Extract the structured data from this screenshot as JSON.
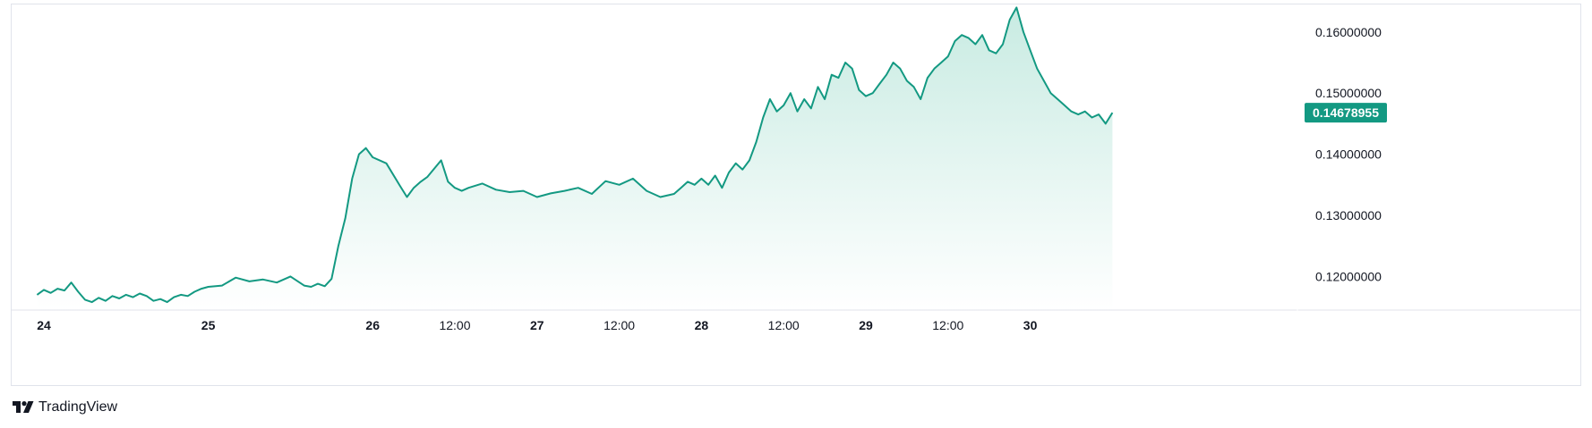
{
  "brand": {
    "name": "TradingView",
    "icon": "tradingview-logo-icon"
  },
  "colors": {
    "line": "#139982",
    "fill_top": "#c8ebe2",
    "fill_bottom": "#ffffff",
    "badge": "#139982"
  },
  "last_price": "0.14678955",
  "chart_data": {
    "type": "area",
    "title": "",
    "xlabel": "",
    "ylabel": "",
    "y_tick_labels": [
      "0.12000000",
      "0.13000000",
      "0.14000000",
      "0.15000000",
      "0.16000000"
    ],
    "x_tick_labels": [
      {
        "label": "24",
        "day": true
      },
      {
        "label": "25",
        "day": true
      },
      {
        "label": "26",
        "day": true
      },
      {
        "label": "12:00",
        "day": false
      },
      {
        "label": "27",
        "day": true
      },
      {
        "label": "12:00",
        "day": false
      },
      {
        "label": "28",
        "day": true
      },
      {
        "label": "12:00",
        "day": false
      },
      {
        "label": "29",
        "day": true
      },
      {
        "label": "12:00",
        "day": false
      },
      {
        "label": "30",
        "day": true
      }
    ],
    "ylim": [
      0.1145,
      0.1645
    ],
    "grid": false,
    "series": [
      {
        "x": [
          "23 Jun 23:00",
          "24 Jun 00:00",
          "24 Jun 01:00",
          "24 Jun 02:00",
          "24 Jun 03:00",
          "24 Jun 04:00",
          "24 Jun 05:00",
          "24 Jun 06:00",
          "24 Jun 07:00",
          "24 Jun 08:00",
          "24 Jun 09:00",
          "24 Jun 10:00",
          "24 Jun 11:00",
          "24 Jun 12:00",
          "24 Jun 13:00",
          "24 Jun 14:00",
          "24 Jun 15:00",
          "24 Jun 16:00",
          "24 Jun 17:00",
          "24 Jun 18:00",
          "24 Jun 19:00",
          "24 Jun 20:00",
          "24 Jun 21:00",
          "24 Jun 22:00",
          "24 Jun 23:00",
          "25 Jun 00:00",
          "25 Jun 02:00",
          "25 Jun 04:00",
          "25 Jun 06:00",
          "25 Jun 08:00",
          "25 Jun 10:00",
          "25 Jun 12:00",
          "25 Jun 14:00",
          "25 Jun 15:00",
          "25 Jun 16:00",
          "25 Jun 17:00",
          "25 Jun 18:00",
          "25 Jun 19:00",
          "25 Jun 20:00",
          "25 Jun 21:00",
          "25 Jun 22:00",
          "25 Jun 23:00",
          "26 Jun 00:00",
          "26 Jun 02:00",
          "26 Jun 04:00",
          "26 Jun 05:00",
          "26 Jun 06:00",
          "26 Jun 07:00",
          "26 Jun 08:00",
          "26 Jun 10:00",
          "26 Jun 11:00",
          "26 Jun 12:00",
          "26 Jun 13:00",
          "26 Jun 14:00",
          "26 Jun 16:00",
          "26 Jun 18:00",
          "26 Jun 20:00",
          "26 Jun 22:00",
          "27 Jun 00:00",
          "27 Jun 02:00",
          "27 Jun 04:00",
          "27 Jun 06:00",
          "27 Jun 08:00",
          "27 Jun 10:00",
          "27 Jun 12:00",
          "27 Jun 14:00",
          "27 Jun 16:00",
          "27 Jun 18:00",
          "27 Jun 20:00",
          "27 Jun 21:00",
          "27 Jun 22:00",
          "27 Jun 23:00",
          "28 Jun 00:00",
          "28 Jun 01:00",
          "28 Jun 02:00",
          "28 Jun 03:00",
          "28 Jun 04:00",
          "28 Jun 05:00",
          "28 Jun 06:00",
          "28 Jun 07:00",
          "28 Jun 08:00",
          "28 Jun 09:00",
          "28 Jun 10:00",
          "28 Jun 11:00",
          "28 Jun 12:00",
          "28 Jun 13:00",
          "28 Jun 14:00",
          "28 Jun 15:00",
          "28 Jun 16:00",
          "28 Jun 17:00",
          "28 Jun 18:00",
          "28 Jun 19:00",
          "28 Jun 20:00",
          "28 Jun 21:00",
          "28 Jun 22:00",
          "28 Jun 23:00",
          "29 Jun 00:00",
          "29 Jun 01:00",
          "29 Jun 02:00",
          "29 Jun 03:00",
          "29 Jun 04:00",
          "29 Jun 05:00",
          "29 Jun 06:00",
          "29 Jun 07:00",
          "29 Jun 08:00",
          "29 Jun 09:00",
          "29 Jun 10:00",
          "29 Jun 11:00",
          "29 Jun 12:00",
          "29 Jun 13:00",
          "29 Jun 14:00",
          "29 Jun 15:00",
          "29 Jun 16:00",
          "29 Jun 17:00",
          "29 Jun 18:00",
          "29 Jun 19:00",
          "29 Jun 20:00",
          "29 Jun 21:00",
          "29 Jun 22:00",
          "29 Jun 23:00",
          "30 Jun 00:00",
          "30 Jun 01:00",
          "30 Jun 02:00",
          "30 Jun 03:00",
          "30 Jun 04:00",
          "30 Jun 05:00",
          "30 Jun 06:00",
          "30 Jun 07:00",
          "30 Jun 08:00",
          "30 Jun 09:00",
          "30 Jun 10:00",
          "30 Jun 11:00",
          "30 Jun 12:00"
        ],
        "y": [
          0.117,
          0.1178,
          0.1173,
          0.118,
          0.1177,
          0.119,
          0.1175,
          0.1162,
          0.1158,
          0.1165,
          0.116,
          0.1168,
          0.1164,
          0.117,
          0.1166,
          0.1172,
          0.1168,
          0.116,
          0.1163,
          0.1158,
          0.1166,
          0.117,
          0.1168,
          0.1175,
          0.118,
          0.1183,
          0.1185,
          0.1198,
          0.1192,
          0.1195,
          0.119,
          0.12,
          0.1185,
          0.1183,
          0.1188,
          0.1184,
          0.1196,
          0.125,
          0.1295,
          0.136,
          0.14,
          0.141,
          0.1395,
          0.1385,
          0.1348,
          0.133,
          0.1345,
          0.1355,
          0.1363,
          0.139,
          0.1355,
          0.1345,
          0.134,
          0.1345,
          0.1352,
          0.1342,
          0.1338,
          0.134,
          0.133,
          0.1336,
          0.134,
          0.1345,
          0.1335,
          0.1356,
          0.135,
          0.136,
          0.134,
          0.133,
          0.1335,
          0.1345,
          0.1355,
          0.135,
          0.136,
          0.135,
          0.1365,
          0.1345,
          0.137,
          0.1385,
          0.1375,
          0.139,
          0.142,
          0.146,
          0.149,
          0.147,
          0.148,
          0.15,
          0.147,
          0.149,
          0.1475,
          0.151,
          0.149,
          0.153,
          0.1525,
          0.155,
          0.154,
          0.1505,
          0.1495,
          0.15,
          0.1515,
          0.153,
          0.155,
          0.154,
          0.152,
          0.151,
          0.149,
          0.1525,
          0.154,
          0.155,
          0.156,
          0.1585,
          0.1595,
          0.159,
          0.158,
          0.1595,
          0.157,
          0.1565,
          0.158,
          0.162,
          0.164,
          0.16,
          0.157,
          0.154,
          0.152,
          0.15,
          0.149,
          0.148,
          0.147,
          0.1465,
          0.147,
          0.146,
          0.1465,
          0.145,
          0.1468
        ]
      }
    ]
  }
}
